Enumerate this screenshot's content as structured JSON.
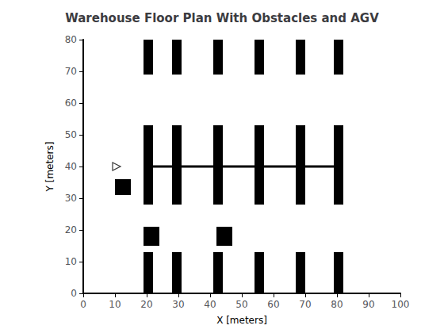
{
  "chart_data": {
    "type": "floor_plan",
    "title": "Warehouse Floor Plan With Obstacles and AGV",
    "xlabel": "X [meters]",
    "ylabel": "Y [meters]",
    "xlim": [
      0,
      100
    ],
    "ylim": [
      0,
      80
    ],
    "xticks": [
      0,
      10,
      20,
      30,
      40,
      50,
      60,
      70,
      80,
      90,
      100
    ],
    "yticks": [
      0,
      10,
      20,
      30,
      40,
      50,
      60,
      70,
      80
    ],
    "grid": false,
    "bg_color": "#ffffff",
    "wall_color": "#000000",
    "shelves_top": {
      "color": "#000000",
      "rects": [
        {
          "x": 19,
          "y": 69,
          "w": 3,
          "h": 11
        },
        {
          "x": 28,
          "y": 69,
          "w": 3,
          "h": 11
        },
        {
          "x": 41,
          "y": 69,
          "w": 3,
          "h": 11
        },
        {
          "x": 54,
          "y": 69,
          "w": 3,
          "h": 11
        },
        {
          "x": 67,
          "y": 69,
          "w": 3,
          "h": 11
        },
        {
          "x": 79,
          "y": 69,
          "w": 3,
          "h": 11
        }
      ]
    },
    "shelves_mid": {
      "color": "#000000",
      "rects": [
        {
          "x": 19,
          "y": 28,
          "w": 3,
          "h": 25
        },
        {
          "x": 28,
          "y": 28,
          "w": 3,
          "h": 25
        },
        {
          "x": 41,
          "y": 28,
          "w": 3,
          "h": 25
        },
        {
          "x": 54,
          "y": 28,
          "w": 3,
          "h": 25
        },
        {
          "x": 67,
          "y": 28,
          "w": 3,
          "h": 25
        },
        {
          "x": 79,
          "y": 28,
          "w": 3,
          "h": 25
        }
      ]
    },
    "shelf_mid_hbar": {
      "color": "#000000",
      "x1": 19,
      "x2": 82,
      "y": 40
    },
    "shelves_bot": {
      "color": "#000000",
      "rects": [
        {
          "x": 19,
          "y": 0,
          "w": 3,
          "h": 13
        },
        {
          "x": 28,
          "y": 0,
          "w": 3,
          "h": 13
        },
        {
          "x": 41,
          "y": 0,
          "w": 3,
          "h": 13
        },
        {
          "x": 54,
          "y": 0,
          "w": 3,
          "h": 13
        },
        {
          "x": 67,
          "y": 0,
          "w": 3,
          "h": 13
        },
        {
          "x": 79,
          "y": 0,
          "w": 3,
          "h": 13
        }
      ]
    },
    "obstacles": {
      "color": "#000000",
      "rects": [
        {
          "x": 10,
          "y": 31,
          "w": 5,
          "h": 5
        },
        {
          "x": 19,
          "y": 15,
          "w": 5,
          "h": 6
        },
        {
          "x": 42,
          "y": 15,
          "w": 5,
          "h": 6
        }
      ]
    },
    "agv": {
      "x": 10.5,
      "y": 40,
      "color": "#000000",
      "marker": "triangle-right"
    }
  }
}
